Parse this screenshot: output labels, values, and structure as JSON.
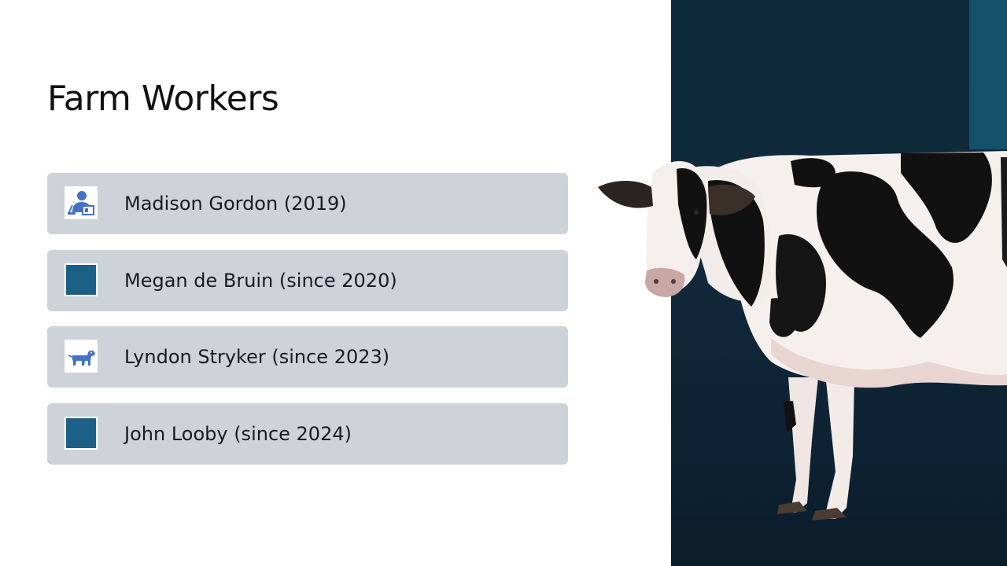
{
  "slide": {
    "title": "Farm Workers",
    "workers": [
      {
        "name": "Madison Gordon (2019)",
        "icon": "farmer-with-laptop-icon",
        "icon_style": "pictogram"
      },
      {
        "name": "Megan de Bruin (since 2020)",
        "icon": "teal-square-placeholder",
        "icon_style": "filled"
      },
      {
        "name": "Lyndon Stryker (since 2023)",
        "icon": "dog-icon",
        "icon_style": "pictogram"
      },
      {
        "name": "John Looby (since 2024)",
        "icon": "teal-square-placeholder",
        "icon_style": "filled"
      }
    ],
    "image": {
      "subject": "holstein-cow-photo"
    }
  },
  "colors": {
    "item_background": "#ced3da",
    "icon_fill": "#4472c4",
    "placeholder_fill": "#1d6087",
    "panel_dark": "#0e2a3b",
    "panel_accent": "#15506a"
  }
}
